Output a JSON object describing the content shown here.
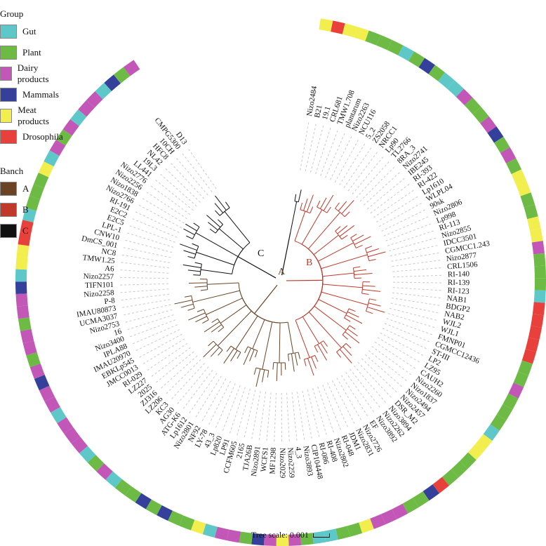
{
  "legend_group": {
    "title": "Group",
    "items": [
      {
        "label": "Gut",
        "color": "#5ec8c8"
      },
      {
        "label": "Plant",
        "color": "#6dbb45"
      },
      {
        "label": "Dairy products",
        "color": "#c257b8"
      },
      {
        "label": "Mammals",
        "color": "#35409a"
      },
      {
        "label": "Meat products",
        "color": "#f2ee4e"
      },
      {
        "label": "Drosophila",
        "color": "#e8413c"
      }
    ]
  },
  "legend_branch": {
    "title": "Banch",
    "items": [
      {
        "label": "A",
        "color": "#6b4426"
      },
      {
        "label": "B",
        "color": "#c0392b"
      },
      {
        "label": "C",
        "color": "#111111"
      }
    ]
  },
  "clade_labels": {
    "A": "A",
    "B": "B",
    "C": "C"
  },
  "scale_label": "Tree scale: 0.001",
  "leaves": [
    {
      "name": "Nizo2484",
      "group": "Meat products",
      "branch": "C"
    },
    {
      "name": "B21",
      "group": "Drosophila",
      "branch": "C"
    },
    {
      "name": "19.1",
      "group": "Meat products",
      "branch": "B"
    },
    {
      "name": "CRL681",
      "group": "Meat products",
      "branch": "B"
    },
    {
      "name": "TMW1.708",
      "group": "Plant",
      "branch": "B"
    },
    {
      "name": "plantarum",
      "group": "Plant",
      "branch": "B"
    },
    {
      "name": "Nizo2263",
      "group": "Plant",
      "branch": "B"
    },
    {
      "name": "NCU116",
      "group": "Gut",
      "branch": "B"
    },
    {
      "name": "5_2",
      "group": "Plant",
      "branch": "B"
    },
    {
      "name": "ZS2058",
      "group": "Mammals",
      "branch": "B"
    },
    {
      "name": "NRCC1",
      "group": "Plant",
      "branch": "B"
    },
    {
      "name": "Lp90",
      "group": "Gut",
      "branch": "B"
    },
    {
      "name": "TL2766",
      "group": "Gut",
      "branch": "B"
    },
    {
      "name": "8RA_3",
      "group": "Dairy products",
      "branch": "B"
    },
    {
      "name": "Nizo2741",
      "group": "Plant",
      "branch": "B"
    },
    {
      "name": "IBE245",
      "group": "Plant",
      "branch": "B"
    },
    {
      "name": "RI-393",
      "group": "Dairy products",
      "branch": "B"
    },
    {
      "name": "RI-422",
      "group": "Mammals",
      "branch": "B"
    },
    {
      "name": "Lp1610",
      "group": "Plant",
      "branch": "B"
    },
    {
      "name": "WLPL04",
      "group": "Dairy products",
      "branch": "B"
    },
    {
      "name": "90sk",
      "group": "Plant",
      "branch": "B"
    },
    {
      "name": "Nizo2806",
      "group": "Meat products",
      "branch": "B"
    },
    {
      "name": "Lp998",
      "group": "Meat products",
      "branch": "B"
    },
    {
      "name": "RI-113",
      "group": "Plant",
      "branch": "B"
    },
    {
      "name": "Nizo2855",
      "group": "Plant",
      "branch": "B"
    },
    {
      "name": "IDCC3501",
      "group": "Meat products",
      "branch": "B"
    },
    {
      "name": "CGMCC1.243",
      "group": "Meat products",
      "branch": "B"
    },
    {
      "name": "Nizo2877",
      "group": "Dairy products",
      "branch": "B"
    },
    {
      "name": "CRL1506",
      "group": "Plant",
      "branch": "B"
    },
    {
      "name": "RI-140",
      "group": "Plant",
      "branch": "B"
    },
    {
      "name": "RI-139",
      "group": "Plant",
      "branch": "B"
    },
    {
      "name": "RI-123",
      "group": "Gut",
      "branch": "B"
    },
    {
      "name": "NAB1",
      "group": "Drosophila",
      "branch": "B"
    },
    {
      "name": "BDGP2",
      "group": "Drosophila",
      "branch": "B"
    },
    {
      "name": "NAB2",
      "group": "Drosophila",
      "branch": "B"
    },
    {
      "name": "WJL2",
      "group": "Drosophila",
      "branch": "B"
    },
    {
      "name": "WJL1",
      "group": "Drosophila",
      "branch": "B"
    },
    {
      "name": "FMNP01",
      "group": "Plant",
      "branch": "B"
    },
    {
      "name": "CGMCC12436",
      "group": "Plant",
      "branch": "B"
    },
    {
      "name": "ST-III",
      "group": "Dairy products",
      "branch": "B"
    },
    {
      "name": "LP2",
      "group": "Plant",
      "branch": "B"
    },
    {
      "name": "LZ95",
      "group": "Plant",
      "branch": "B"
    },
    {
      "name": "CAUH2",
      "group": "Plant",
      "branch": "B"
    },
    {
      "name": "Nizo2260",
      "group": "Gut",
      "branch": "B"
    },
    {
      "name": "Nizo1837",
      "group": "Meat products",
      "branch": "B"
    },
    {
      "name": "Nizo2494",
      "group": "Meat products",
      "branch": "B"
    },
    {
      "name": "Nizo2457",
      "group": "Plant",
      "branch": "B"
    },
    {
      "name": "DSR_M2",
      "group": "Plant",
      "branch": "B"
    },
    {
      "name": "Nizo3894",
      "group": "Plant",
      "branch": "B"
    },
    {
      "name": "Nizo2262",
      "group": "Drosophila",
      "branch": "B"
    },
    {
      "name": "Nizo3892",
      "group": "Mammals",
      "branch": "B"
    },
    {
      "name": "EF",
      "group": "Plant",
      "branch": "B"
    },
    {
      "name": "Nizo2726",
      "group": "Plant",
      "branch": "B"
    },
    {
      "name": "Nizo2831",
      "group": "Dairy products",
      "branch": "B"
    },
    {
      "name": "JDM1",
      "group": "Dairy products",
      "branch": "B"
    },
    {
      "name": "RI-048",
      "group": "Dairy products",
      "branch": "B"
    },
    {
      "name": "Nizo2802",
      "group": "Meat products",
      "branch": "B"
    },
    {
      "name": "RI-408",
      "group": "Plant",
      "branch": "B"
    },
    {
      "name": "RI-086",
      "group": "Plant",
      "branch": "A"
    },
    {
      "name": "CIP104448",
      "group": "Gut",
      "branch": "A"
    },
    {
      "name": "Nizo3893",
      "group": "Gut",
      "branch": "A"
    },
    {
      "name": "4_3",
      "group": "Plant",
      "branch": "A"
    },
    {
      "name": "Nizo2259",
      "group": "Dairy products",
      "branch": "A"
    },
    {
      "name": "Nizo2029",
      "group": "Meat products",
      "branch": "A"
    },
    {
      "name": "MF1298",
      "group": "Dairy products",
      "branch": "A"
    },
    {
      "name": "WCFS1",
      "group": "Mammals",
      "branch": "A"
    },
    {
      "name": "Nizo2891",
      "group": "Plant",
      "branch": "A"
    },
    {
      "name": "TJA26B",
      "group": "Dairy products",
      "branch": "A"
    },
    {
      "name": "2165",
      "group": "Dairy products",
      "branch": "A"
    },
    {
      "name": "CCFM605",
      "group": "Gut",
      "branch": "A"
    },
    {
      "name": "LP91",
      "group": "Meat products",
      "branch": "A"
    },
    {
      "name": "Lp820",
      "group": "Plant",
      "branch": "A"
    },
    {
      "name": "43_3",
      "group": "Plant",
      "branch": "A"
    },
    {
      "name": "LY-78",
      "group": "Mammals",
      "branch": "A"
    },
    {
      "name": "NF92",
      "group": "Plant",
      "branch": "A"
    },
    {
      "name": "Nizo2801",
      "group": "Mammals",
      "branch": "A"
    },
    {
      "name": "Lp1612",
      "group": "Plant",
      "branch": "A"
    },
    {
      "name": "ATG-K6",
      "group": "Plant",
      "branch": "A"
    },
    {
      "name": "AG30",
      "group": "Gut",
      "branch": "A"
    },
    {
      "name": "KC3",
      "group": "Dairy products",
      "branch": "A"
    },
    {
      "name": "LZ206",
      "group": "Plant",
      "branch": "A"
    },
    {
      "name": "ZJ316",
      "group": "Gut",
      "branch": "A"
    },
    {
      "name": "2025",
      "group": "Dairy products",
      "branch": "A"
    },
    {
      "name": "LZ227",
      "group": "Dairy products",
      "branch": "A"
    },
    {
      "name": "RI-029",
      "group": "Dairy products",
      "branch": "A"
    },
    {
      "name": "JMCC0013",
      "group": "Gut",
      "branch": "A"
    },
    {
      "name": "EBKLp545",
      "group": "Dairy products",
      "branch": "A"
    },
    {
      "name": "IMAU20970",
      "group": "Dairy products",
      "branch": "A"
    },
    {
      "name": "IPLA88",
      "group": "Mammals",
      "branch": "A"
    },
    {
      "name": "Nizo3400",
      "group": "Dairy products",
      "branch": "A"
    },
    {
      "name": "16",
      "group": "Plant",
      "branch": "A"
    },
    {
      "name": "Nizo2753",
      "group": "Dairy products",
      "branch": "A"
    },
    {
      "name": "UCMA3037",
      "group": "Dairy products",
      "branch": "A"
    },
    {
      "name": "IMAU80873",
      "group": "Plant",
      "branch": "A"
    },
    {
      "name": "P-8",
      "group": "Dairy products",
      "branch": "A"
    },
    {
      "name": "Nizo2258",
      "group": "Dairy products",
      "branch": "A"
    },
    {
      "name": "TIFN101",
      "group": "Mammals",
      "branch": "A"
    },
    {
      "name": "Nizo2257",
      "group": "Gut",
      "branch": "A"
    },
    {
      "name": "A6",
      "group": "Meat products",
      "branch": "C"
    },
    {
      "name": "TMW1.25",
      "group": "Meat products",
      "branch": "C"
    },
    {
      "name": "NC8",
      "group": "Drosophila",
      "branch": "C"
    },
    {
      "name": "DmCS_001",
      "group": "Drosophila",
      "branch": "C"
    },
    {
      "name": "CNW10",
      "group": "Gut",
      "branch": "C"
    },
    {
      "name": "LPL-1",
      "group": "Plant",
      "branch": "C"
    },
    {
      "name": "E2C5",
      "group": "Plant",
      "branch": "C"
    },
    {
      "name": "E2C2",
      "group": "Plant",
      "branch": "C"
    },
    {
      "name": "RI-191",
      "group": "Meat products",
      "branch": "C"
    },
    {
      "name": "Nizo2766",
      "group": "Gut",
      "branch": "C"
    },
    {
      "name": "Nizo1838",
      "group": "Dairy products",
      "branch": "C"
    },
    {
      "name": "Nizo2256",
      "group": "Plant",
      "branch": "C"
    },
    {
      "name": "Nizo2776",
      "group": "Dairy products",
      "branch": "C"
    },
    {
      "name": "LL441",
      "group": "Gut",
      "branch": "C"
    },
    {
      "name": "19L3",
      "group": "Dairy products",
      "branch": "C"
    },
    {
      "name": "NL42",
      "group": "Dairy products",
      "branch": "C"
    },
    {
      "name": "HFC8",
      "group": "Gut",
      "branch": "C"
    },
    {
      "name": "10CH",
      "group": "Mammals",
      "branch": "C"
    },
    {
      "name": "CMPG5300",
      "group": "Plant",
      "branch": "C"
    },
    {
      "name": "D13",
      "group": "Dairy products",
      "branch": "C"
    }
  ]
}
